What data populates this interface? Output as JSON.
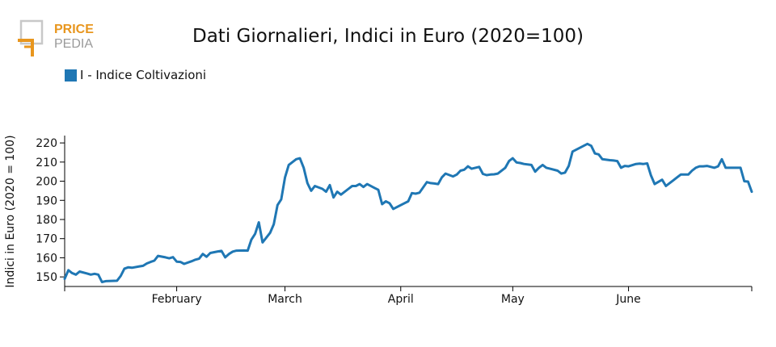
{
  "logo": {
    "line1": "PRICE",
    "line2": "PEDIA",
    "color_orange": "#e8961e",
    "color_gray": "#9a9a9a"
  },
  "colors": {
    "series": "#1f77b4",
    "axis": "#000000"
  },
  "chart_data": {
    "type": "line",
    "title": "Dati Giornalieri, Indici in Euro (2020=100)",
    "ylabel": "Indici in Euro (2020 = 100)",
    "xlabel": "",
    "ylim": [
      145,
      223
    ],
    "y_ticks": [
      150,
      160,
      170,
      180,
      190,
      200,
      210,
      220
    ],
    "legend_position": "top-left",
    "x_ticks": [
      {
        "label": "February",
        "date": "2024-02-01"
      },
      {
        "label": "March",
        "date": "2024-03-01"
      },
      {
        "label": "April",
        "date": "2024-04-01"
      },
      {
        "label": "May",
        "date": "2024-05-01"
      },
      {
        "label": "June",
        "date": "2024-06-01"
      }
    ],
    "series": [
      {
        "name": "I - Indice Coltivazioni",
        "color": "#1f77b4",
        "points": [
          [
            "2024-01-02",
            149.0
          ],
          [
            "2024-01-03",
            153.5
          ],
          [
            "2024-01-04",
            152.0
          ],
          [
            "2024-01-05",
            151.2
          ],
          [
            "2024-01-06",
            152.8
          ],
          [
            "2024-01-08",
            151.8
          ],
          [
            "2024-01-09",
            151.2
          ],
          [
            "2024-01-10",
            151.6
          ],
          [
            "2024-01-11",
            151.2
          ],
          [
            "2024-01-12",
            147.3
          ],
          [
            "2024-01-13",
            147.8
          ],
          [
            "2024-01-16",
            148.0
          ],
          [
            "2024-01-17",
            150.5
          ],
          [
            "2024-01-18",
            154.3
          ],
          [
            "2024-01-19",
            155.0
          ],
          [
            "2024-01-20",
            154.8
          ],
          [
            "2024-01-22",
            155.5
          ],
          [
            "2024-01-23",
            155.8
          ],
          [
            "2024-01-24",
            157.0
          ],
          [
            "2024-01-25",
            157.8
          ],
          [
            "2024-01-26",
            158.5
          ],
          [
            "2024-01-27",
            161.0
          ],
          [
            "2024-01-29",
            160.2
          ],
          [
            "2024-01-30",
            159.7
          ],
          [
            "2024-01-31",
            160.3
          ],
          [
            "2024-02-01",
            158.0
          ],
          [
            "2024-02-02",
            157.8
          ],
          [
            "2024-02-03",
            156.8
          ],
          [
            "2024-02-05",
            158.2
          ],
          [
            "2024-02-06",
            159.0
          ],
          [
            "2024-02-07",
            159.5
          ],
          [
            "2024-02-08",
            162.0
          ],
          [
            "2024-02-09",
            160.5
          ],
          [
            "2024-02-10",
            162.5
          ],
          [
            "2024-02-12",
            163.3
          ],
          [
            "2024-02-13",
            163.6
          ],
          [
            "2024-02-14",
            160.2
          ],
          [
            "2024-02-15",
            162.0
          ],
          [
            "2024-02-16",
            163.2
          ],
          [
            "2024-02-17",
            163.7
          ],
          [
            "2024-02-19",
            163.8
          ],
          [
            "2024-02-20",
            163.7
          ],
          [
            "2024-02-21",
            169.5
          ],
          [
            "2024-02-22",
            172.5
          ],
          [
            "2024-02-23",
            178.5
          ],
          [
            "2024-02-24",
            168.0
          ],
          [
            "2024-02-26",
            173.0
          ],
          [
            "2024-02-27",
            177.5
          ],
          [
            "2024-02-28",
            187.5
          ],
          [
            "2024-02-29",
            190.5
          ],
          [
            "2024-03-01",
            202.0
          ],
          [
            "2024-03-02",
            208.5
          ],
          [
            "2024-03-04",
            211.5
          ],
          [
            "2024-03-05",
            212.0
          ],
          [
            "2024-03-06",
            207.0
          ],
          [
            "2024-03-07",
            199.0
          ],
          [
            "2024-03-08",
            195.0
          ],
          [
            "2024-03-09",
            197.5
          ],
          [
            "2024-03-11",
            196.0
          ],
          [
            "2024-03-12",
            194.5
          ],
          [
            "2024-03-13",
            198.0
          ],
          [
            "2024-03-14",
            191.5
          ],
          [
            "2024-03-15",
            194.5
          ],
          [
            "2024-03-16",
            193.0
          ],
          [
            "2024-03-18",
            196.0
          ],
          [
            "2024-03-19",
            197.5
          ],
          [
            "2024-03-20",
            197.5
          ],
          [
            "2024-03-21",
            198.5
          ],
          [
            "2024-03-22",
            197.0
          ],
          [
            "2024-03-23",
            198.5
          ],
          [
            "2024-03-25",
            196.5
          ],
          [
            "2024-03-26",
            195.5
          ],
          [
            "2024-03-27",
            188.0
          ],
          [
            "2024-03-28",
            189.5
          ],
          [
            "2024-03-29",
            188.5
          ],
          [
            "2024-03-30",
            185.5
          ],
          [
            "2024-04-02",
            188.5
          ],
          [
            "2024-04-03",
            189.5
          ],
          [
            "2024-04-04",
            193.8
          ],
          [
            "2024-04-05",
            193.5
          ],
          [
            "2024-04-06",
            194.0
          ],
          [
            "2024-04-08",
            199.5
          ],
          [
            "2024-04-09",
            199.0
          ],
          [
            "2024-04-10",
            198.8
          ],
          [
            "2024-04-11",
            198.5
          ],
          [
            "2024-04-12",
            202.0
          ],
          [
            "2024-04-13",
            204.0
          ],
          [
            "2024-04-15",
            202.5
          ],
          [
            "2024-04-16",
            203.5
          ],
          [
            "2024-04-17",
            205.5
          ],
          [
            "2024-04-18",
            206.0
          ],
          [
            "2024-04-19",
            207.8
          ],
          [
            "2024-04-20",
            206.5
          ],
          [
            "2024-04-22",
            207.5
          ],
          [
            "2024-04-23",
            203.8
          ],
          [
            "2024-04-24",
            203.2
          ],
          [
            "2024-04-25",
            203.5
          ],
          [
            "2024-04-26",
            203.6
          ],
          [
            "2024-04-27",
            204.0
          ],
          [
            "2024-04-29",
            207.0
          ],
          [
            "2024-04-30",
            210.5
          ],
          [
            "2024-05-01",
            212.0
          ],
          [
            "2024-05-02",
            209.8
          ],
          [
            "2024-05-03",
            209.5
          ],
          [
            "2024-05-04",
            209.0
          ],
          [
            "2024-05-06",
            208.5
          ],
          [
            "2024-05-07",
            205.0
          ],
          [
            "2024-05-08",
            207.0
          ],
          [
            "2024-05-09",
            208.5
          ],
          [
            "2024-05-10",
            207.0
          ],
          [
            "2024-05-11",
            206.5
          ],
          [
            "2024-05-13",
            205.5
          ],
          [
            "2024-05-14",
            204.0
          ],
          [
            "2024-05-15",
            204.5
          ],
          [
            "2024-05-16",
            208.0
          ],
          [
            "2024-05-17",
            215.5
          ],
          [
            "2024-05-18",
            216.5
          ],
          [
            "2024-05-20",
            218.5
          ],
          [
            "2024-05-21",
            219.5
          ],
          [
            "2024-05-22",
            218.5
          ],
          [
            "2024-05-23",
            214.5
          ],
          [
            "2024-05-24",
            214.0
          ],
          [
            "2024-05-25",
            211.5
          ],
          [
            "2024-05-27",
            211.0
          ],
          [
            "2024-05-28",
            210.8
          ],
          [
            "2024-05-29",
            210.5
          ],
          [
            "2024-05-30",
            207.0
          ],
          [
            "2024-05-31",
            208.0
          ],
          [
            "2024-06-01",
            207.8
          ],
          [
            "2024-06-03",
            209.0
          ],
          [
            "2024-06-04",
            209.2
          ],
          [
            "2024-06-05",
            209.0
          ],
          [
            "2024-06-06",
            209.3
          ],
          [
            "2024-06-07",
            203.0
          ],
          [
            "2024-06-08",
            198.5
          ],
          [
            "2024-06-10",
            200.8
          ],
          [
            "2024-06-11",
            197.5
          ],
          [
            "2024-06-12",
            199.0
          ],
          [
            "2024-06-13",
            200.5
          ],
          [
            "2024-06-14",
            202.0
          ],
          [
            "2024-06-15",
            203.5
          ],
          [
            "2024-06-17",
            203.5
          ],
          [
            "2024-06-18",
            205.5
          ],
          [
            "2024-06-19",
            207.0
          ],
          [
            "2024-06-20",
            207.8
          ],
          [
            "2024-06-21",
            207.8
          ],
          [
            "2024-06-22",
            208.0
          ],
          [
            "2024-06-24",
            207.0
          ],
          [
            "2024-06-25",
            207.8
          ],
          [
            "2024-06-26",
            211.5
          ],
          [
            "2024-06-27",
            207.0
          ],
          [
            "2024-06-28",
            207.0
          ],
          [
            "2024-06-29",
            207.0
          ],
          [
            "2024-07-01",
            207.0
          ],
          [
            "2024-07-02",
            200.0
          ],
          [
            "2024-07-03",
            199.8
          ],
          [
            "2024-07-04",
            194.5
          ]
        ]
      }
    ]
  }
}
